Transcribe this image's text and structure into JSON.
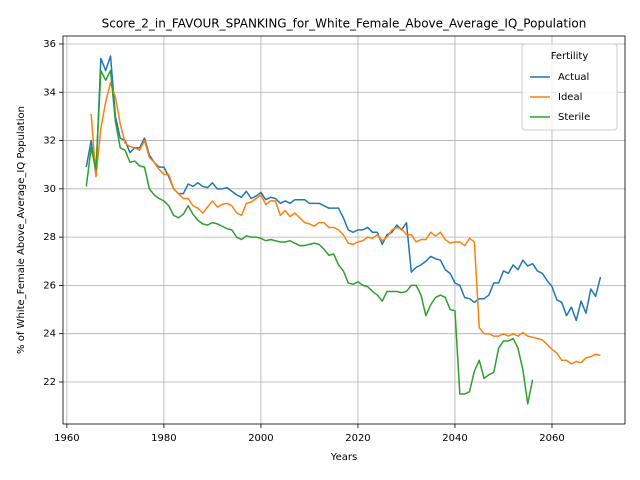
{
  "chart_data": {
    "type": "line",
    "title": "Score_2_in_FAVOUR_SPANKING_for_White_Female_Above_Average_IQ_Population",
    "xlabel": "Years",
    "ylabel": "% of White_Female Above_Average_IQ Population",
    "legend_title": "Fertility",
    "legend": "upper right",
    "grid": true,
    "x": [
      1964,
      1965,
      1966,
      1967,
      1968,
      1969,
      1970,
      1971,
      1972,
      1973,
      1974,
      1975,
      1976,
      1977,
      1978,
      1979,
      1980,
      1981,
      1982,
      1983,
      1984,
      1985,
      1986,
      1987,
      1988,
      1989,
      1990,
      1991,
      1992,
      1993,
      1994,
      1995,
      1996,
      1997,
      1998,
      1999,
      2000,
      2001,
      2002,
      2003,
      2004,
      2005,
      2006,
      2007,
      2008,
      2009,
      2010,
      2011,
      2012,
      2013,
      2014,
      2015,
      2016,
      2017,
      2018,
      2019,
      2020,
      2021,
      2022,
      2023,
      2024,
      2025,
      2026,
      2027,
      2028,
      2029,
      2030,
      2031,
      2032,
      2033,
      2034,
      2035,
      2036,
      2037,
      2038,
      2039,
      2040,
      2041,
      2042,
      2043,
      2044,
      2045,
      2046,
      2047,
      2048,
      2049,
      2050,
      2051,
      2052,
      2053,
      2054,
      2055,
      2056,
      2057,
      2058,
      2059,
      2060,
      2061,
      2062,
      2063,
      2064,
      2065,
      2066,
      2067,
      2068,
      2069,
      2070
    ],
    "series": [
      {
        "name": "Actual",
        "color": "#1f77b4",
        "values": [
          30.9,
          32.0,
          30.6,
          35.4,
          34.9,
          35.5,
          33.0,
          32.1,
          32.0,
          31.5,
          31.7,
          31.7,
          32.1,
          31.4,
          31.1,
          30.9,
          30.9,
          30.5,
          30.0,
          29.8,
          29.8,
          30.2,
          30.1,
          30.25,
          30.1,
          30.05,
          30.25,
          30.0,
          30.0,
          30.05,
          29.9,
          29.75,
          29.65,
          29.9,
          29.6,
          29.7,
          29.85,
          29.55,
          29.65,
          29.6,
          29.4,
          29.5,
          29.4,
          29.55,
          29.55,
          29.55,
          29.4,
          29.4,
          29.4,
          29.3,
          29.2,
          29.2,
          29.2,
          28.8,
          28.3,
          28.2,
          28.3,
          28.3,
          28.4,
          28.2,
          28.2,
          27.7,
          28.1,
          28.2,
          28.5,
          28.3,
          28.6,
          26.55,
          26.75,
          26.85,
          27.0,
          27.2,
          27.1,
          27.05,
          26.65,
          26.5,
          26.1,
          26.0,
          25.5,
          25.45,
          25.3,
          25.45,
          25.45,
          25.6,
          26.1,
          26.1,
          26.6,
          26.5,
          26.85,
          26.65,
          27.05,
          26.8,
          26.9,
          26.6,
          26.5,
          26.2,
          25.95,
          25.4,
          25.3,
          24.75,
          25.1,
          24.55,
          25.35,
          24.85,
          25.85,
          25.55,
          26.35
        ]
      },
      {
        "name": "Ideal",
        "color": "#ff7f0e",
        "values": [
          null,
          33.1,
          30.5,
          32.5,
          33.6,
          34.4,
          33.8,
          32.7,
          31.9,
          31.75,
          31.7,
          31.6,
          32.0,
          31.3,
          31.1,
          30.8,
          30.6,
          30.6,
          30.0,
          29.8,
          29.6,
          29.6,
          29.3,
          29.2,
          29.0,
          29.25,
          29.5,
          29.25,
          29.35,
          29.4,
          29.3,
          29.0,
          28.9,
          29.4,
          29.45,
          29.6,
          29.75,
          29.35,
          29.5,
          29.5,
          28.9,
          29.1,
          28.85,
          29.0,
          28.8,
          28.6,
          28.55,
          28.45,
          28.6,
          28.6,
          28.4,
          28.4,
          28.3,
          28.1,
          27.75,
          27.7,
          27.8,
          27.85,
          28.0,
          27.95,
          28.1,
          27.85,
          28.0,
          28.3,
          28.4,
          28.35,
          28.1,
          28.1,
          27.8,
          27.9,
          27.9,
          28.2,
          28.05,
          28.2,
          27.9,
          27.75,
          27.8,
          27.8,
          27.65,
          27.95,
          27.8,
          24.25,
          24.0,
          24.0,
          23.9,
          23.9,
          24.0,
          23.9,
          24.0,
          23.9,
          24.05,
          23.9,
          23.85,
          23.8,
          23.75,
          23.55,
          23.35,
          23.2,
          22.9,
          22.9,
          22.75,
          22.85,
          22.8,
          23.0,
          23.05,
          23.15,
          23.1
        ]
      },
      {
        "name": "Sterile",
        "color": "#2ca02c",
        "values": [
          30.1,
          31.7,
          30.8,
          34.9,
          34.5,
          34.9,
          32.8,
          31.7,
          31.6,
          31.1,
          31.15,
          30.95,
          30.9,
          30.0,
          29.75,
          29.6,
          29.5,
          29.3,
          28.9,
          28.8,
          28.95,
          29.3,
          28.95,
          28.7,
          28.55,
          28.5,
          28.6,
          28.55,
          28.45,
          28.35,
          28.3,
          28.0,
          27.9,
          28.05,
          28.0,
          28.0,
          27.95,
          27.85,
          27.9,
          27.85,
          27.8,
          27.8,
          27.85,
          27.75,
          27.65,
          27.65,
          27.7,
          27.75,
          27.7,
          27.5,
          27.25,
          27.3,
          26.85,
          26.6,
          26.1,
          26.05,
          26.15,
          26.0,
          25.95,
          25.75,
          25.6,
          25.35,
          25.75,
          25.75,
          25.75,
          25.7,
          25.75,
          26.0,
          26.0,
          25.6,
          24.75,
          25.2,
          25.5,
          25.6,
          25.5,
          25.0,
          24.95,
          21.5,
          21.5,
          21.6,
          22.45,
          22.9,
          22.15,
          22.3,
          22.4,
          23.4,
          23.7,
          23.7,
          23.8,
          23.4,
          22.5,
          21.1,
          22.1,
          null,
          null,
          null,
          null,
          null,
          null,
          null,
          null,
          null,
          null,
          null,
          null,
          null,
          null
        ]
      }
    ],
    "xlim": [
      1959.2,
      2075.05
    ],
    "xticks": [
      1960,
      1980,
      2000,
      2020,
      2040,
      2060
    ],
    "ylim": [
      20.26,
      36.33
    ],
    "yticks": [
      22,
      24,
      26,
      28,
      30,
      32,
      34,
      36
    ]
  }
}
